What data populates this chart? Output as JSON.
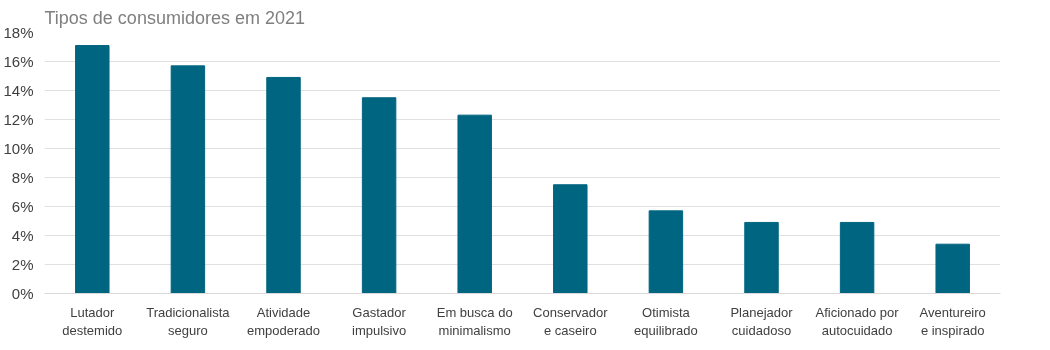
{
  "chart_data": {
    "type": "bar",
    "title": "Tipos de consumidores em 2021",
    "categories": [
      "Lutador\ndestemido",
      "Tradicionalista\nseguro",
      "Atividade\nempoderado",
      "Gastador\nimpulsivo",
      "Em busca do\nminimalismo",
      "Conservador\ne caseiro",
      "Otimista\nequilibrado",
      "Planejador\ncuidadoso",
      "Aficionado por\nautocuidado",
      "Aventureiro\ne inspirado"
    ],
    "values": [
      17.1,
      15.7,
      14.9,
      13.5,
      12.3,
      7.5,
      5.7,
      4.9,
      4.9,
      3.4
    ],
    "color": "#006580",
    "ylim": [
      0,
      18
    ],
    "yticks": [
      {
        "value": 0,
        "label": "0%"
      },
      {
        "value": 2,
        "label": "2%"
      },
      {
        "value": 4,
        "label": "4%"
      },
      {
        "value": 6,
        "label": "6%"
      },
      {
        "value": 8,
        "label": "8%"
      },
      {
        "value": 10,
        "label": "10%"
      },
      {
        "value": 12,
        "label": "12%"
      },
      {
        "value": 14,
        "label": "14%"
      },
      {
        "value": 16,
        "label": "16%"
      },
      {
        "value": 18,
        "label": "18%"
      }
    ],
    "grid": "y"
  }
}
